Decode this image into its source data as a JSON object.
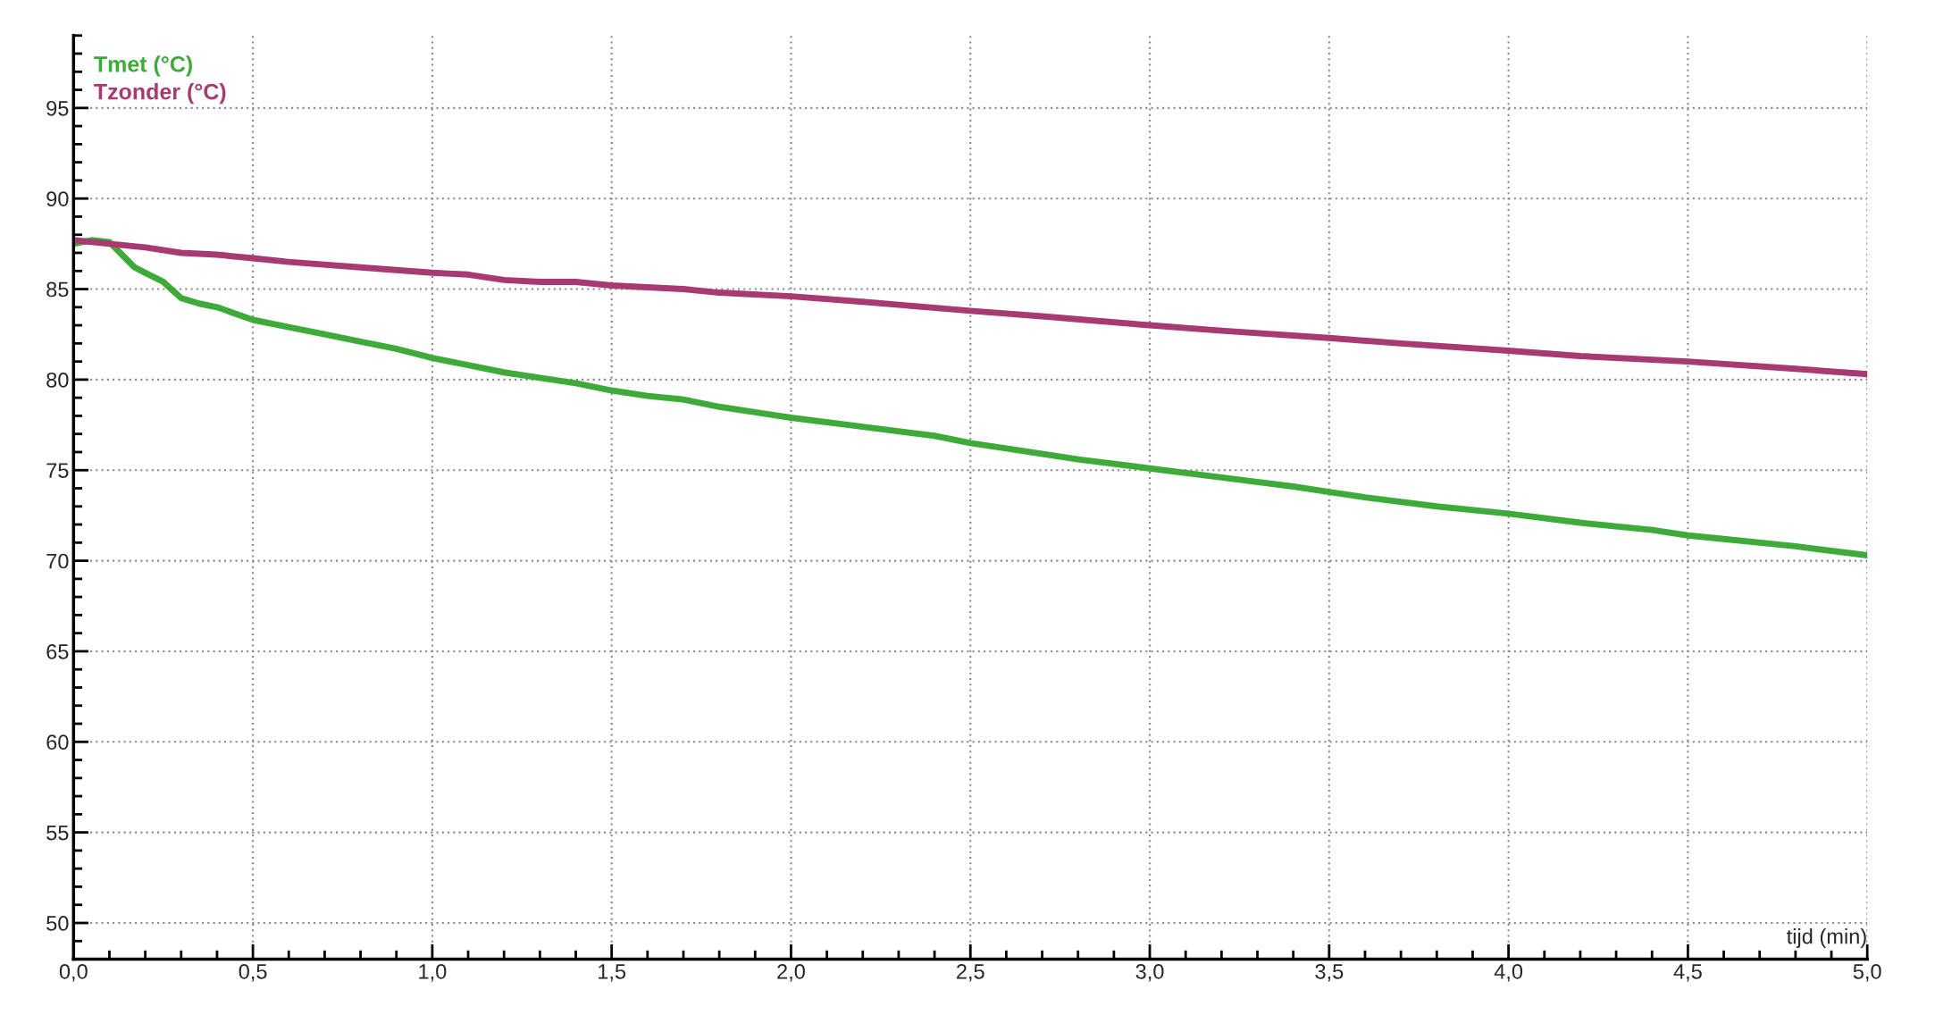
{
  "chart_data": {
    "type": "line",
    "xlabel": "tijd (min)",
    "x": [
      0,
      0.05,
      0.1,
      0.13,
      0.17,
      0.2,
      0.25,
      0.3,
      0.35,
      0.4,
      0.5,
      0.6,
      0.7,
      0.8,
      0.9,
      1.0,
      1.1,
      1.2,
      1.3,
      1.4,
      1.5,
      1.6,
      1.7,
      1.8,
      1.9,
      2.0,
      2.2,
      2.4,
      2.5,
      2.6,
      2.8,
      3.0,
      3.2,
      3.4,
      3.5,
      3.6,
      3.8,
      4.0,
      4.2,
      4.4,
      4.5,
      4.6,
      4.8,
      5.0
    ],
    "series": [
      {
        "name": "Tmet (°C)",
        "color": "#3daa3a",
        "values": [
          87.5,
          87.7,
          87.6,
          87.0,
          86.2,
          85.9,
          85.4,
          84.5,
          84.2,
          84.0,
          83.3,
          82.9,
          82.5,
          82.1,
          81.7,
          81.2,
          80.8,
          80.4,
          80.1,
          79.8,
          79.4,
          79.1,
          78.9,
          78.5,
          78.2,
          77.9,
          77.4,
          76.9,
          76.5,
          76.2,
          75.6,
          75.1,
          74.6,
          74.1,
          73.8,
          73.5,
          73.0,
          72.6,
          72.1,
          71.7,
          71.4,
          71.2,
          70.8,
          70.3
        ]
      },
      {
        "name": "Tzonder (°C)",
        "color": "#a83a72",
        "x": [
          0,
          0.1,
          0.2,
          0.3,
          0.4,
          0.5,
          0.6,
          0.8,
          1.0,
          1.1,
          1.2,
          1.3,
          1.4,
          1.5,
          1.7,
          1.8,
          2.0,
          2.2,
          2.5,
          2.7,
          3.0,
          3.2,
          3.5,
          3.7,
          4.0,
          4.2,
          4.5,
          4.8,
          5.0
        ],
        "values": [
          87.7,
          87.5,
          87.3,
          87.0,
          86.9,
          86.7,
          86.5,
          86.2,
          85.9,
          85.8,
          85.5,
          85.4,
          85.4,
          85.2,
          85.0,
          84.8,
          84.6,
          84.3,
          83.8,
          83.5,
          83.0,
          82.7,
          82.3,
          82.0,
          81.6,
          81.3,
          81.0,
          80.6,
          80.3
        ]
      }
    ],
    "xlim": [
      0,
      5
    ],
    "ylim": [
      48,
      99
    ],
    "xticks": [
      {
        "value": 0,
        "label": "0,0"
      },
      {
        "value": 0.1,
        "label": null
      },
      {
        "value": 0.2,
        "label": null
      },
      {
        "value": 0.3,
        "label": null
      },
      {
        "value": 0.4,
        "label": null
      },
      {
        "value": 0.5,
        "label": "0,5"
      },
      {
        "value": 0.6,
        "label": null
      },
      {
        "value": 0.7,
        "label": null
      },
      {
        "value": 0.8,
        "label": null
      },
      {
        "value": 0.9,
        "label": null
      },
      {
        "value": 1,
        "label": "1,0"
      },
      {
        "value": 1.1,
        "label": null
      },
      {
        "value": 1.2,
        "label": null
      },
      {
        "value": 1.3,
        "label": null
      },
      {
        "value": 1.4,
        "label": null
      },
      {
        "value": 1.5,
        "label": "1,5"
      },
      {
        "value": 1.6,
        "label": null
      },
      {
        "value": 1.7,
        "label": null
      },
      {
        "value": 1.8,
        "label": null
      },
      {
        "value": 1.9,
        "label": null
      },
      {
        "value": 2,
        "label": "2,0"
      },
      {
        "value": 2.1,
        "label": null
      },
      {
        "value": 2.2,
        "label": null
      },
      {
        "value": 2.3,
        "label": null
      },
      {
        "value": 2.4,
        "label": null
      },
      {
        "value": 2.5,
        "label": "2,5"
      },
      {
        "value": 2.6,
        "label": null
      },
      {
        "value": 2.7,
        "label": null
      },
      {
        "value": 2.8,
        "label": null
      },
      {
        "value": 2.9,
        "label": null
      },
      {
        "value": 3,
        "label": "3,0"
      },
      {
        "value": 3.1,
        "label": null
      },
      {
        "value": 3.2,
        "label": null
      },
      {
        "value": 3.3,
        "label": null
      },
      {
        "value": 3.4,
        "label": null
      },
      {
        "value": 3.5,
        "label": "3,5"
      },
      {
        "value": 3.6,
        "label": null
      },
      {
        "value": 3.7,
        "label": null
      },
      {
        "value": 3.8,
        "label": null
      },
      {
        "value": 3.9,
        "label": null
      },
      {
        "value": 4,
        "label": "4,0"
      },
      {
        "value": 4.1,
        "label": null
      },
      {
        "value": 4.2,
        "label": null
      },
      {
        "value": 4.3,
        "label": null
      },
      {
        "value": 4.4,
        "label": null
      },
      {
        "value": 4.5,
        "label": "4,5"
      },
      {
        "value": 4.6,
        "label": null
      },
      {
        "value": 4.7,
        "label": null
      },
      {
        "value": 4.8,
        "label": null
      },
      {
        "value": 4.9,
        "label": null
      },
      {
        "value": 5,
        "label": "5,0"
      }
    ],
    "yticks": [
      {
        "value": 48,
        "label": null
      },
      {
        "value": 49,
        "label": null
      },
      50,
      {
        "value": 51,
        "label": null
      },
      {
        "value": 52,
        "label": null
      },
      {
        "value": 53,
        "label": null
      },
      {
        "value": 54,
        "label": null
      },
      55,
      {
        "value": 56,
        "label": null
      },
      {
        "value": 57,
        "label": null
      },
      {
        "value": 58,
        "label": null
      },
      {
        "value": 59,
        "label": null
      },
      60,
      {
        "value": 61,
        "label": null
      },
      {
        "value": 62,
        "label": null
      },
      {
        "value": 63,
        "label": null
      },
      {
        "value": 64,
        "label": null
      },
      65,
      {
        "value": 66,
        "label": null
      },
      {
        "value": 67,
        "label": null
      },
      {
        "value": 68,
        "label": null
      },
      {
        "value": 69,
        "label": null
      },
      70,
      {
        "value": 71,
        "label": null
      },
      {
        "value": 72,
        "label": null
      },
      {
        "value": 73,
        "label": null
      },
      {
        "value": 74,
        "label": null
      },
      75,
      {
        "value": 76,
        "label": null
      },
      {
        "value": 77,
        "label": null
      },
      {
        "value": 78,
        "label": null
      },
      {
        "value": 79,
        "label": null
      },
      80,
      {
        "value": 81,
        "label": null
      },
      {
        "value": 82,
        "label": null
      },
      {
        "value": 83,
        "label": null
      },
      {
        "value": 84,
        "label": null
      },
      85,
      {
        "value": 86,
        "label": null
      },
      {
        "value": 87,
        "label": null
      },
      {
        "value": 88,
        "label": null
      },
      {
        "value": 89,
        "label": null
      },
      90,
      {
        "value": 91,
        "label": null
      },
      {
        "value": 92,
        "label": null
      },
      {
        "value": 93,
        "label": null
      },
      {
        "value": 94,
        "label": null
      },
      95,
      {
        "value": 96,
        "label": null
      },
      {
        "value": 97,
        "label": null
      },
      {
        "value": 98,
        "label": null
      },
      {
        "value": 99,
        "label": null
      }
    ],
    "grid": true,
    "legend": "top left",
    "marker": "none",
    "line_style": "solid"
  }
}
